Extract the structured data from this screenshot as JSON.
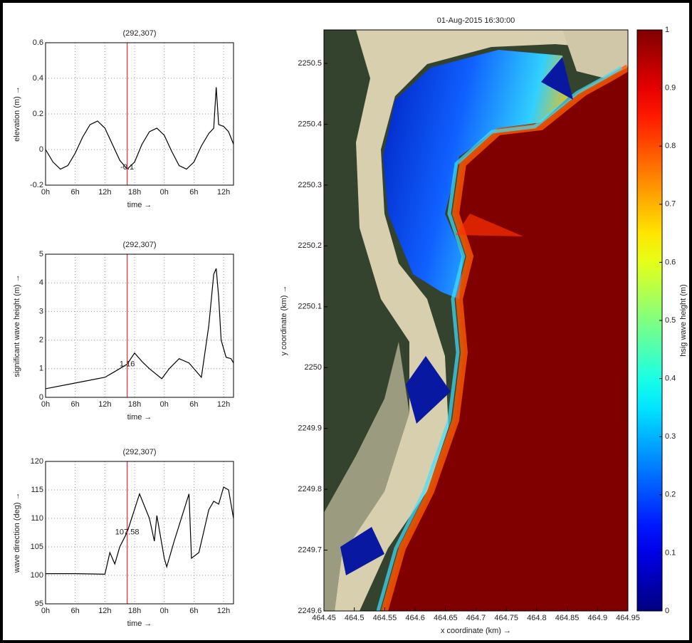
{
  "chart_data": [
    {
      "type": "line",
      "title": "(292,307)",
      "xlabel": "time →",
      "ylabel": "elevation (m) →",
      "x": [
        0,
        1.5,
        3,
        4.5,
        6,
        7.5,
        9,
        10.5,
        12,
        13.5,
        15,
        16.5,
        18,
        19.5,
        21,
        22.5,
        24,
        25.5,
        27,
        28.5,
        30,
        31.5,
        33,
        34,
        34.5,
        35,
        36,
        37,
        38
      ],
      "values": [
        0,
        -0.07,
        -0.11,
        -0.09,
        -0.02,
        0.07,
        0.14,
        0.16,
        0.12,
        0.03,
        -0.06,
        -0.11,
        -0.07,
        0.03,
        0.1,
        0.12,
        0.08,
        -0.01,
        -0.09,
        -0.11,
        -0.07,
        0.02,
        0.09,
        0.12,
        0.35,
        0.14,
        0.13,
        0.1,
        0.03
      ],
      "color": "#000000",
      "xlim": [
        0,
        38
      ],
      "xticks": [
        {
          "value": 0,
          "label": "0h"
        },
        {
          "value": 6,
          "label": "6h"
        },
        {
          "value": 12,
          "label": "12h"
        },
        {
          "value": 18,
          "label": "18h"
        },
        {
          "value": 24,
          "label": "0h"
        },
        {
          "value": 30,
          "label": "6h"
        },
        {
          "value": 36,
          "label": "12h"
        }
      ],
      "ylim": [
        -0.2,
        0.6
      ],
      "yticks": [
        -0.2,
        0,
        0.2,
        0.4,
        0.6
      ],
      "grid": true,
      "cursor": {
        "x": 16.5,
        "value": -0.1,
        "color": "#e03030"
      }
    },
    {
      "type": "line",
      "title": "(292,307)",
      "xlabel": "time →",
      "ylabel": "significant wave height (m) →",
      "x": [
        0,
        6,
        12,
        14,
        16.5,
        18,
        19.5,
        21,
        23.5,
        25,
        27,
        29,
        31.5,
        33,
        34,
        34.5,
        35,
        35.5,
        36.5,
        37.5,
        38
      ],
      "values": [
        0.3,
        0.5,
        0.7,
        0.9,
        1.16,
        1.55,
        1.25,
        1.0,
        0.65,
        1.0,
        1.35,
        1.2,
        0.7,
        2.5,
        4.3,
        4.5,
        3.5,
        2.0,
        1.4,
        1.35,
        1.2
      ],
      "color": "#000000",
      "xlim": [
        0,
        38
      ],
      "xticks": [
        {
          "value": 0,
          "label": "0h"
        },
        {
          "value": 6,
          "label": "6h"
        },
        {
          "value": 12,
          "label": "12h"
        },
        {
          "value": 18,
          "label": "18h"
        },
        {
          "value": 24,
          "label": "0h"
        },
        {
          "value": 30,
          "label": "6h"
        },
        {
          "value": 36,
          "label": "12h"
        }
      ],
      "ylim": [
        0,
        5
      ],
      "yticks": [
        0,
        1,
        2,
        3,
        4,
        5
      ],
      "grid": true,
      "cursor": {
        "x": 16.5,
        "value": 1.16,
        "color": "#e03030"
      }
    },
    {
      "type": "line",
      "title": "(292,307)",
      "xlabel": "time →",
      "ylabel": "wave direction (deg) →",
      "x": [
        0,
        6,
        12,
        13,
        14,
        15,
        16.5,
        19,
        21,
        22,
        22.5,
        24,
        24.5,
        26,
        29,
        29.5,
        31,
        33,
        34,
        35,
        36,
        37,
        38
      ],
      "values": [
        100.3,
        100.3,
        100.2,
        104,
        102,
        105,
        107.58,
        114.3,
        110,
        106,
        110.5,
        103,
        101.5,
        106,
        114.3,
        103,
        104,
        111.5,
        113,
        112.5,
        115.5,
        115,
        110
      ],
      "color": "#000000",
      "xlim": [
        0,
        38
      ],
      "xticks": [
        {
          "value": 0,
          "label": "0h"
        },
        {
          "value": 6,
          "label": "6h"
        },
        {
          "value": 12,
          "label": "12h"
        },
        {
          "value": 18,
          "label": "18h"
        },
        {
          "value": 24,
          "label": "0h"
        },
        {
          "value": 30,
          "label": "6h"
        },
        {
          "value": 36,
          "label": "12h"
        }
      ],
      "ylim": [
        95,
        120
      ],
      "yticks": [
        95,
        100,
        105,
        110,
        115,
        120
      ],
      "grid": true,
      "cursor": {
        "x": 16.5,
        "value": 107.58,
        "color": "#e03030"
      }
    },
    {
      "type": "map",
      "title": "01-Aug-2015 16:30:00",
      "xlabel": "x coordinate (km) →",
      "ylabel": "y coordinate (km) →",
      "xlim": [
        464.45,
        464.95
      ],
      "xticks": [
        464.45,
        464.5,
        464.55,
        464.6,
        464.65,
        464.7,
        464.75,
        464.8,
        464.85,
        464.9,
        464.95
      ],
      "ylim": [
        2249.6,
        2250.555
      ],
      "yticks": [
        2249.6,
        2249.7,
        2249.8,
        2249.9,
        2250,
        2250.1,
        2250.2,
        2250.3,
        2250.4,
        2250.5
      ],
      "colorbar": {
        "label": "hsig wave height (m)",
        "clim": [
          0,
          1
        ],
        "ticks": [
          0,
          0.1,
          0.2,
          0.3,
          0.4,
          0.5,
          0.6,
          0.7,
          0.8,
          0.9,
          1
        ],
        "colormap": "jet"
      }
    }
  ]
}
